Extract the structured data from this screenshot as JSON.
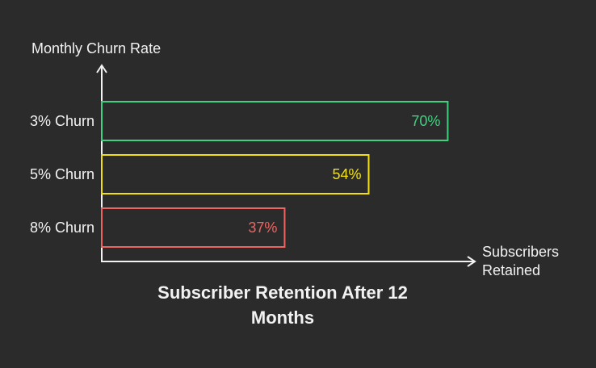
{
  "chart_data": {
    "type": "hbar",
    "title": "Subscriber Retention After 12 Months",
    "y_label": "Monthly Churn Rate",
    "x_label": "Subscribers Retained",
    "categories": [
      "3% Churn",
      "5% Churn",
      "8% Churn"
    ],
    "values": [
      70,
      54,
      37
    ],
    "value_labels": [
      "70%",
      "54%",
      "37%"
    ],
    "colors": [
      "#3fd17f",
      "#f2e10f",
      "#ef6461"
    ],
    "xlim": [
      0,
      75
    ]
  }
}
